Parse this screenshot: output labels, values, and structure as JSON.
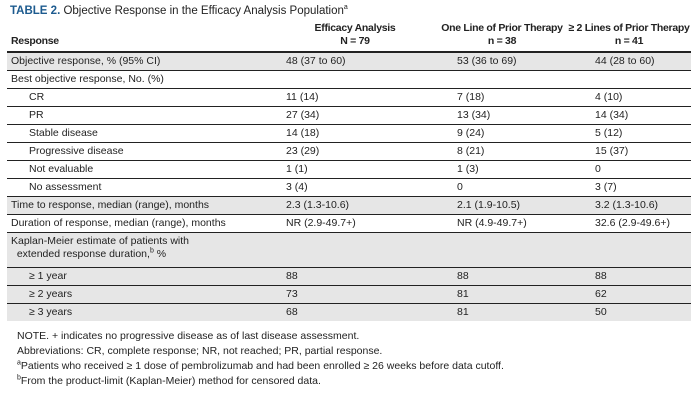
{
  "title": {
    "label": "TABLE 2.",
    "text": "Objective Response in the Efficacy Analysis Population",
    "footnote_mark": "a"
  },
  "columns": [
    {
      "name": "Response",
      "n": ""
    },
    {
      "name": "Efficacy Analysis",
      "n": "N = 79"
    },
    {
      "name": "One Line of Prior Therapy",
      "n": "n = 38"
    },
    {
      "name": "≥ 2 Lines of Prior Therapy",
      "n": "n = 41"
    }
  ],
  "rows": [
    {
      "label": "Objective response, % (95% CI)",
      "values": [
        "48 (37 to 60)",
        "53 (36 to 69)",
        "44 (28 to 60)"
      ]
    },
    {
      "label": "Best objective response, No. (%)",
      "values": [
        "",
        "",
        ""
      ]
    },
    {
      "label": "CR",
      "values": [
        "11 (14)",
        "7 (18)",
        "4 (10)"
      ]
    },
    {
      "label": "PR",
      "values": [
        "27 (34)",
        "13 (34)",
        "14 (34)"
      ]
    },
    {
      "label": "Stable disease",
      "values": [
        "14 (18)",
        "9 (24)",
        "5 (12)"
      ]
    },
    {
      "label": "Progressive disease",
      "values": [
        "23 (29)",
        "8 (21)",
        "15 (37)"
      ]
    },
    {
      "label": "Not evaluable",
      "values": [
        "1 (1)",
        "1 (3)",
        "0"
      ]
    },
    {
      "label": "No assessment",
      "values": [
        "3 (4)",
        "0",
        "3 (7)"
      ]
    },
    {
      "label": "Time to response, median (range), months",
      "values": [
        "2.3 (1.3-10.6)",
        "2.1 (1.9-10.5)",
        "3.2 (1.3-10.6)"
      ]
    },
    {
      "label": "Duration of response, median (range), months",
      "values": [
        "NR (2.9-49.7+)",
        "NR (4.9-49.7+)",
        "32.6 (2.9-49.6+)"
      ]
    },
    {
      "label": "Kaplan-Meier estimate of patients with",
      "label2": "extended response duration,",
      "mark": "b",
      "label3": " %",
      "values": [
        "",
        "",
        ""
      ]
    },
    {
      "label": "≥ 1 year",
      "values": [
        "88",
        "88",
        "88"
      ]
    },
    {
      "label": "≥ 2 years",
      "values": [
        "73",
        "81",
        "62"
      ]
    },
    {
      "label": "≥ 3 years",
      "values": [
        "68",
        "81",
        "50"
      ]
    }
  ],
  "notes": [
    "NOTE. + indicates no progressive disease as of last disease assessment.",
    "Abbreviations: CR, complete response; NR, not reached; PR, partial response.",
    {
      "mark": "a",
      "text": "Patients who received ≥ 1 dose of pembrolizumab and had been enrolled ≥ 26 weeks before data cutoff."
    },
    {
      "mark": "b",
      "text": "From the product-limit (Kaplan-Meier) method for censored data."
    }
  ]
}
